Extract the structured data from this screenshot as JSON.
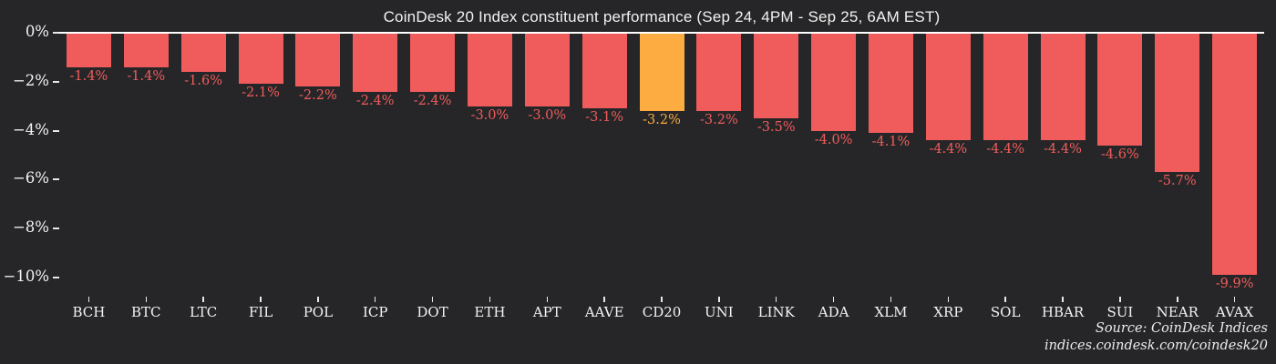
{
  "title": "CoinDesk 20 Index constituent performance (Sep 24, 4PM - Sep 25, 6AM EST)",
  "source": {
    "line1": "Source: CoinDesk Indices",
    "line2": "indices.coindesk.com/coindesk20"
  },
  "colors": {
    "background": "#262628",
    "bar": "#f05c5c",
    "highlight_bar": "#fdac42",
    "axis_text": "#f3f3f3",
    "zero_line": "#ffffff"
  },
  "chart_data": {
    "type": "bar",
    "title": "CoinDesk 20 Index constituent performance (Sep 24, 4PM - Sep 25, 6AM EST)",
    "categories": [
      "BCH",
      "BTC",
      "LTC",
      "FIL",
      "POL",
      "ICP",
      "DOT",
      "ETH",
      "APT",
      "AAVE",
      "CD20",
      "UNI",
      "LINK",
      "ADA",
      "XLM",
      "XRP",
      "SOL",
      "HBAR",
      "SUI",
      "NEAR",
      "AVAX"
    ],
    "values": [
      -1.4,
      -1.4,
      -1.6,
      -2.1,
      -2.2,
      -2.4,
      -2.4,
      -3.0,
      -3.0,
      -3.1,
      -3.2,
      -3.2,
      -3.5,
      -4.0,
      -4.1,
      -4.4,
      -4.4,
      -4.4,
      -4.6,
      -5.7,
      -9.9
    ],
    "bar_labels": [
      "-1.4%",
      "-1.4%",
      "-1.6%",
      "-2.1%",
      "-2.2%",
      "-2.4%",
      "-2.4%",
      "-3.0%",
      "-3.0%",
      "-3.1%",
      "-3.2%",
      "-3.2%",
      "-3.5%",
      "-4.0%",
      "-4.1%",
      "-4.4%",
      "-4.4%",
      "-4.4%",
      "-4.6%",
      "-5.7%",
      "-9.9%"
    ],
    "highlight_category": "CD20",
    "xlabel": "",
    "ylabel": "",
    "ylim": [
      -10.8,
      0
    ],
    "yticks": [
      0,
      -2,
      -4,
      -6,
      -8,
      -10
    ],
    "ytick_labels": [
      "0%",
      "−2%",
      "−4%",
      "−6%",
      "−8%",
      "−10%"
    ],
    "grid": false,
    "legend": false,
    "value_labels_position": "below-bar",
    "unit": "%"
  }
}
